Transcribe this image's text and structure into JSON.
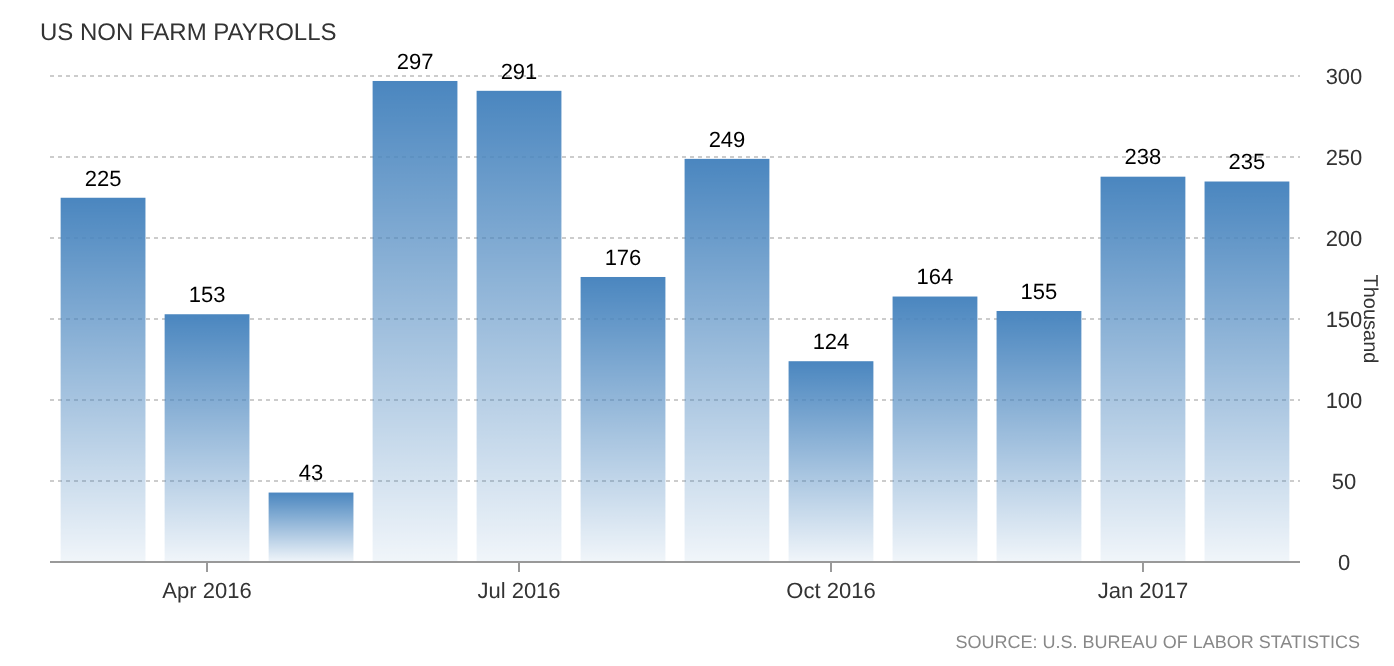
{
  "chart_data": {
    "type": "bar",
    "title": "US NON FARM PAYROLLS",
    "ylabel": "Thousand",
    "categories": [
      null,
      "Apr 2016",
      null,
      null,
      "Jul 2016",
      null,
      null,
      "Oct 2016",
      null,
      null,
      "Jan 2017",
      null
    ],
    "values": [
      225,
      153,
      43,
      297,
      291,
      176,
      249,
      124,
      164,
      155,
      238,
      235
    ],
    "color": "#4a86bf",
    "ylim": [
      0,
      300
    ],
    "yticks": [
      0,
      50,
      100,
      150,
      200,
      250,
      300
    ],
    "grid": "y",
    "data_labels": true,
    "annotations": [
      "SOURCE: U.S. BUREAU OF LABOR STATISTICS"
    ]
  }
}
